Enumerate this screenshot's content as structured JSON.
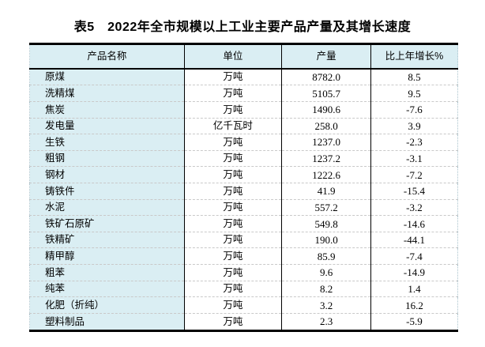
{
  "title": "表5　2022年全市规模以上工业主要产品产量及其增长速度",
  "table": {
    "headers": [
      "产品名称",
      "单位",
      "产量",
      "比上年增长%"
    ],
    "rows": [
      [
        "原煤",
        "万吨",
        "8782.0",
        "8.5"
      ],
      [
        "洗精煤",
        "万吨",
        "5105.7",
        "9.5"
      ],
      [
        "焦炭",
        "万吨",
        "1490.6",
        "-7.6"
      ],
      [
        "发电量",
        "亿千瓦时",
        "258.0",
        "3.9"
      ],
      [
        "生铁",
        "万吨",
        "1237.0",
        "-2.3"
      ],
      [
        "粗钢",
        "万吨",
        "1237.2",
        "-3.1"
      ],
      [
        "钢材",
        "万吨",
        "1222.6",
        "-7.2"
      ],
      [
        "铸铁件",
        "万吨",
        "41.9",
        "-15.4"
      ],
      [
        "水泥",
        "万吨",
        "557.2",
        "-3.2"
      ],
      [
        "铁矿石原矿",
        "万吨",
        "549.8",
        "-14.6"
      ],
      [
        "铁精矿",
        "万吨",
        "190.0",
        "-44.1"
      ],
      [
        "精甲醇",
        "万吨",
        "85.9",
        "-7.4"
      ],
      [
        "粗苯",
        "万吨",
        "9.6",
        "-14.9"
      ],
      [
        "纯苯",
        "万吨",
        "8.2",
        "1.4"
      ],
      [
        "化肥（折纯）",
        "万吨",
        "3.2",
        "16.2"
      ],
      [
        "塑料制品",
        "万吨",
        "2.3",
        "-5.9"
      ]
    ]
  },
  "colors": {
    "header_bg": "#daeef3",
    "first_col_bg": "#daeef3",
    "line_black": "#000000",
    "row_divider": "#c9c9c9",
    "outer_dotted": "#a9c3cd",
    "text": "#000000"
  }
}
